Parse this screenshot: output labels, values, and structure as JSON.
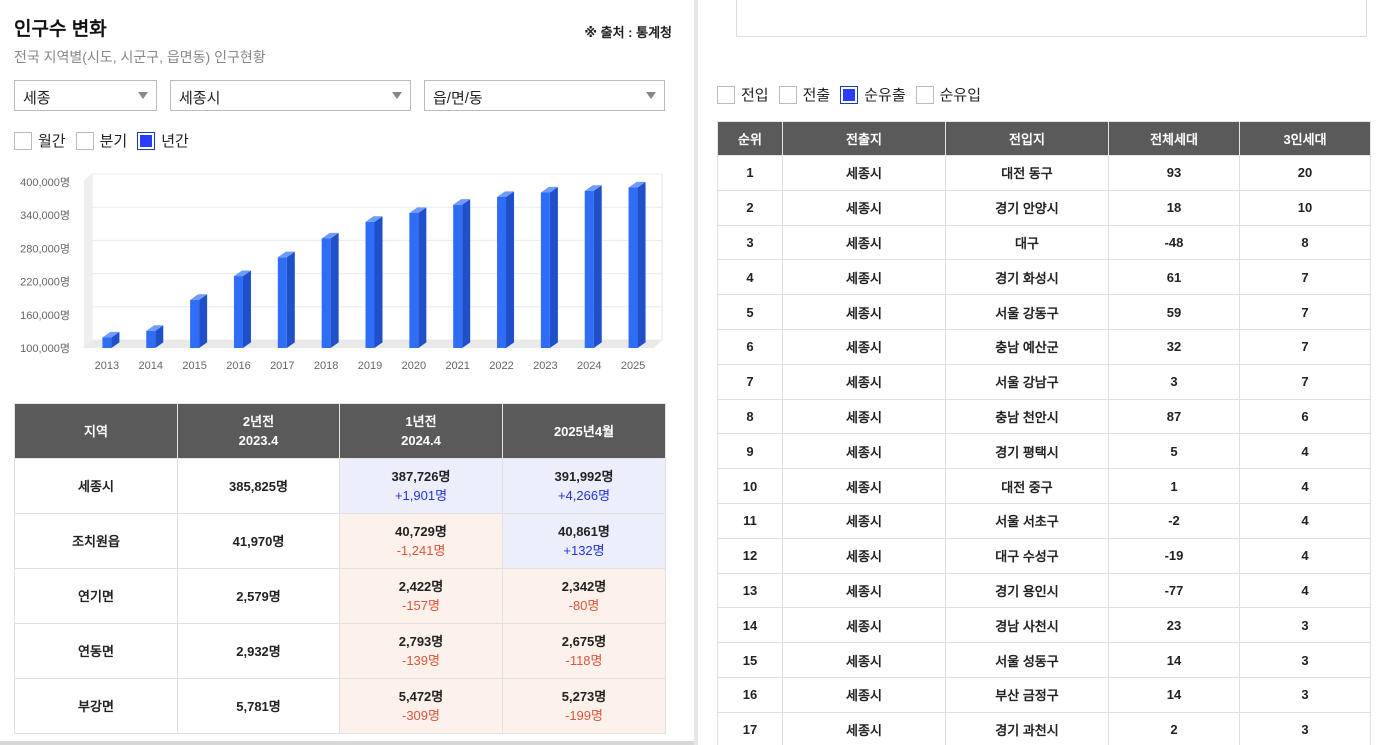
{
  "header": {
    "title": "인구수 변화",
    "source": "※ 출처 : 통계청",
    "subtitle": "전국 지역별(시도, 시군구, 읍면동) 인구현황"
  },
  "filters": {
    "sido": "세종",
    "sigungu": "세종시",
    "eupmyeondong": "읍/면/동"
  },
  "period_options": [
    {
      "label": "월간",
      "checked": false
    },
    {
      "label": "분기",
      "checked": false
    },
    {
      "label": "년간",
      "checked": true
    }
  ],
  "chart_data": {
    "type": "bar",
    "categories": [
      "2013",
      "2014",
      "2015",
      "2016",
      "2017",
      "2018",
      "2019",
      "2020",
      "2021",
      "2022",
      "2023",
      "2024",
      "2025"
    ],
    "values": [
      119000,
      131000,
      187000,
      230000,
      264000,
      298000,
      328000,
      344000,
      359000,
      373000,
      381000,
      384000,
      390000
    ],
    "ylim": [
      100000,
      400000
    ],
    "yticks": [
      "100,000명",
      "160,000명",
      "220,000명",
      "280,000명",
      "340,000명",
      "400,000명"
    ],
    "bar_color": "#2f6df6"
  },
  "left_table": {
    "headers": [
      {
        "line1": "지역",
        "line2": ""
      },
      {
        "line1": "2년전",
        "line2": "2023.4"
      },
      {
        "line1": "1년전",
        "line2": "2024.4"
      },
      {
        "line1": "2025년4월",
        "line2": ""
      }
    ],
    "rows": [
      {
        "region": "세종시",
        "y2": "385,825명",
        "y1": "387,726명",
        "y1_diff": "+1,901명",
        "y1_dir": "up",
        "cur": "391,992명",
        "cur_diff": "+4,266명",
        "cur_dir": "up"
      },
      {
        "region": "조치원읍",
        "y2": "41,970명",
        "y1": "40,729명",
        "y1_diff": "-1,241명",
        "y1_dir": "down",
        "cur": "40,861명",
        "cur_diff": "+132명",
        "cur_dir": "up"
      },
      {
        "region": "연기면",
        "y2": "2,579명",
        "y1": "2,422명",
        "y1_diff": "-157명",
        "y1_dir": "down",
        "cur": "2,342명",
        "cur_diff": "-80명",
        "cur_dir": "down"
      },
      {
        "region": "연동면",
        "y2": "2,932명",
        "y1": "2,793명",
        "y1_diff": "-139명",
        "y1_dir": "down",
        "cur": "2,675명",
        "cur_diff": "-118명",
        "cur_dir": "down"
      },
      {
        "region": "부강면",
        "y2": "5,781명",
        "y1": "5,472명",
        "y1_diff": "-309명",
        "y1_dir": "down",
        "cur": "5,273명",
        "cur_diff": "-199명",
        "cur_dir": "down"
      }
    ]
  },
  "move_options": [
    {
      "label": "전입",
      "checked": false
    },
    {
      "label": "전출",
      "checked": false
    },
    {
      "label": "순유출",
      "checked": true
    },
    {
      "label": "순유입",
      "checked": false
    }
  ],
  "right_table": {
    "headers": [
      "순위",
      "전출지",
      "전입지",
      "전체세대",
      "3인세대"
    ],
    "rows": [
      [
        "1",
        "세종시",
        "대전 동구",
        "93",
        "20"
      ],
      [
        "2",
        "세종시",
        "경기 안양시",
        "18",
        "10"
      ],
      [
        "3",
        "세종시",
        "대구",
        "-48",
        "8"
      ],
      [
        "4",
        "세종시",
        "경기 화성시",
        "61",
        "7"
      ],
      [
        "5",
        "세종시",
        "서울 강동구",
        "59",
        "7"
      ],
      [
        "6",
        "세종시",
        "충남 예산군",
        "32",
        "7"
      ],
      [
        "7",
        "세종시",
        "서울 강남구",
        "3",
        "7"
      ],
      [
        "8",
        "세종시",
        "충남 천안시",
        "87",
        "6"
      ],
      [
        "9",
        "세종시",
        "경기 평택시",
        "5",
        "4"
      ],
      [
        "10",
        "세종시",
        "대전 중구",
        "1",
        "4"
      ],
      [
        "11",
        "세종시",
        "서울 서초구",
        "-2",
        "4"
      ],
      [
        "12",
        "세종시",
        "대구 수성구",
        "-19",
        "4"
      ],
      [
        "13",
        "세종시",
        "경기 용인시",
        "-77",
        "4"
      ],
      [
        "14",
        "세종시",
        "경남 사천시",
        "23",
        "3"
      ],
      [
        "15",
        "세종시",
        "서울 성동구",
        "14",
        "3"
      ],
      [
        "16",
        "세종시",
        "부산 금정구",
        "14",
        "3"
      ],
      [
        "17",
        "세종시",
        "경기 과천시",
        "2",
        "3"
      ]
    ]
  }
}
